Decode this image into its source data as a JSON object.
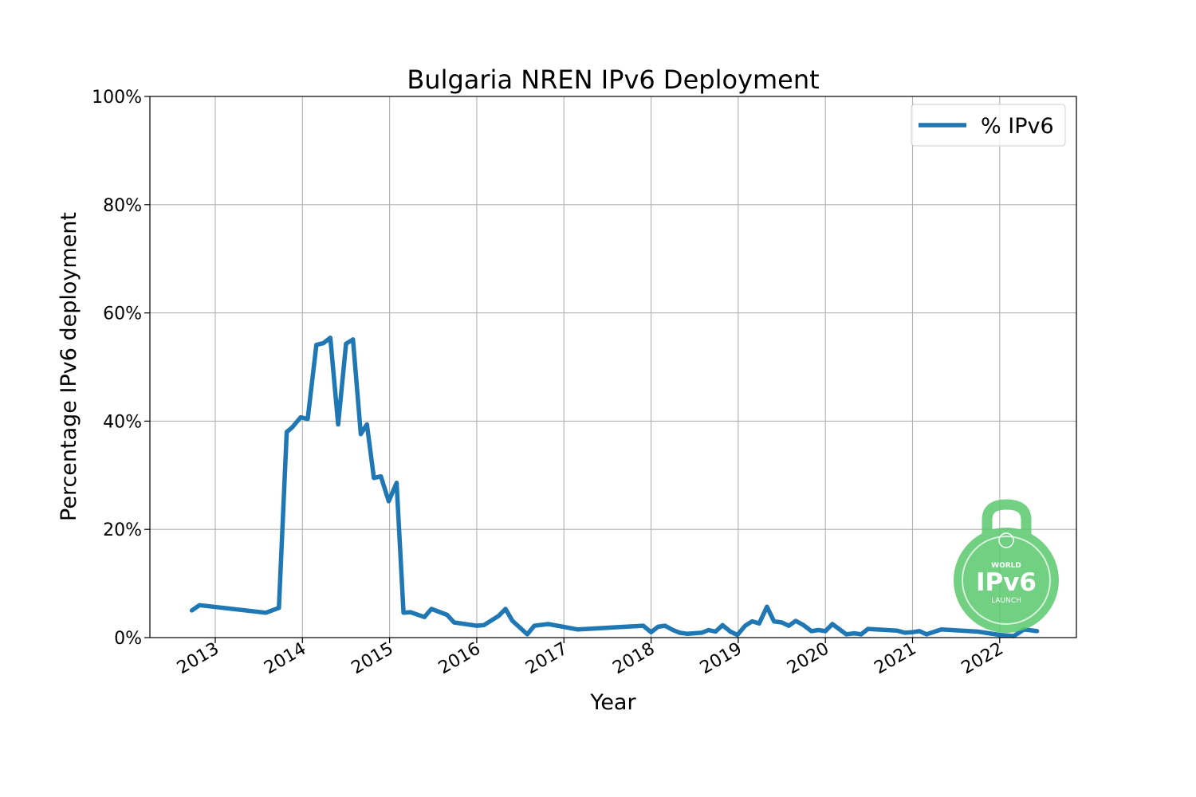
{
  "chart_data": {
    "type": "line",
    "title": "Bulgaria NREN IPv6 Deployment",
    "xlabel": "Year",
    "ylabel": "Percentage IPv6 deployment",
    "xlim": [
      2012.25,
      2022.88
    ],
    "ylim": [
      0,
      100
    ],
    "x_ticks": [
      2013,
      2014,
      2015,
      2016,
      2017,
      2018,
      2019,
      2020,
      2021,
      2022
    ],
    "x_tick_labels": [
      "2013",
      "2014",
      "2015",
      "2016",
      "2017",
      "2018",
      "2019",
      "2020",
      "2021",
      "2022"
    ],
    "y_ticks": [
      0,
      20,
      40,
      60,
      80,
      100
    ],
    "y_tick_labels": [
      "0%",
      "20%",
      "40%",
      "60%",
      "80%",
      "100%"
    ],
    "grid": true,
    "legend_position": "top-right",
    "logo_text": [
      "WORLD",
      "IPv6",
      "LAUNCH"
    ],
    "colors": {
      "series": "#1f77b4",
      "logo": "#5ac86e"
    },
    "series": [
      {
        "name": "% IPv6",
        "x": [
          2012.73,
          2012.82,
          2013.58,
          2013.73,
          2013.82,
          2013.88,
          2013.98,
          2014.06,
          2014.16,
          2014.24,
          2014.32,
          2014.41,
          2014.5,
          2014.58,
          2014.67,
          2014.74,
          2014.82,
          2014.9,
          2014.99,
          2015.08,
          2015.16,
          2015.24,
          2015.4,
          2015.48,
          2015.66,
          2015.74,
          2016.0,
          2016.08,
          2016.25,
          2016.33,
          2016.41,
          2016.58,
          2016.66,
          2016.82,
          2017.16,
          2017.91,
          2018.0,
          2018.08,
          2018.16,
          2018.25,
          2018.33,
          2018.41,
          2018.58,
          2018.66,
          2018.74,
          2018.82,
          2018.91,
          2018.99,
          2019.08,
          2019.16,
          2019.24,
          2019.33,
          2019.41,
          2019.5,
          2019.58,
          2019.66,
          2019.75,
          2019.84,
          2019.92,
          2020.0,
          2020.08,
          2020.24,
          2020.33,
          2020.41,
          2020.49,
          2020.82,
          2020.91,
          2021.0,
          2021.08,
          2021.16,
          2021.33,
          2021.75,
          2022.0,
          2022.16,
          2022.28,
          2022.43
        ],
        "values": [
          5.0,
          6.0,
          4.6,
          5.5,
          38.0,
          38.8,
          40.7,
          40.4,
          54.1,
          54.4,
          55.4,
          39.4,
          54.3,
          55.1,
          37.6,
          39.4,
          29.5,
          29.8,
          25.2,
          28.6,
          4.6,
          4.7,
          3.8,
          5.3,
          4.2,
          2.8,
          2.2,
          2.3,
          4.0,
          5.3,
          3.1,
          0.6,
          2.2,
          2.5,
          1.5,
          2.2,
          1.0,
          2.0,
          2.2,
          1.4,
          0.9,
          0.7,
          0.9,
          1.4,
          1.1,
          2.3,
          1.1,
          0.5,
          2.2,
          3.0,
          2.6,
          5.7,
          3.0,
          2.8,
          2.2,
          3.1,
          2.3,
          1.2,
          1.4,
          1.2,
          2.5,
          0.6,
          0.8,
          0.6,
          1.6,
          1.3,
          0.9,
          1.0,
          1.2,
          0.6,
          1.5,
          1.1,
          0.5,
          0.3,
          1.5,
          1.2
        ]
      }
    ]
  }
}
